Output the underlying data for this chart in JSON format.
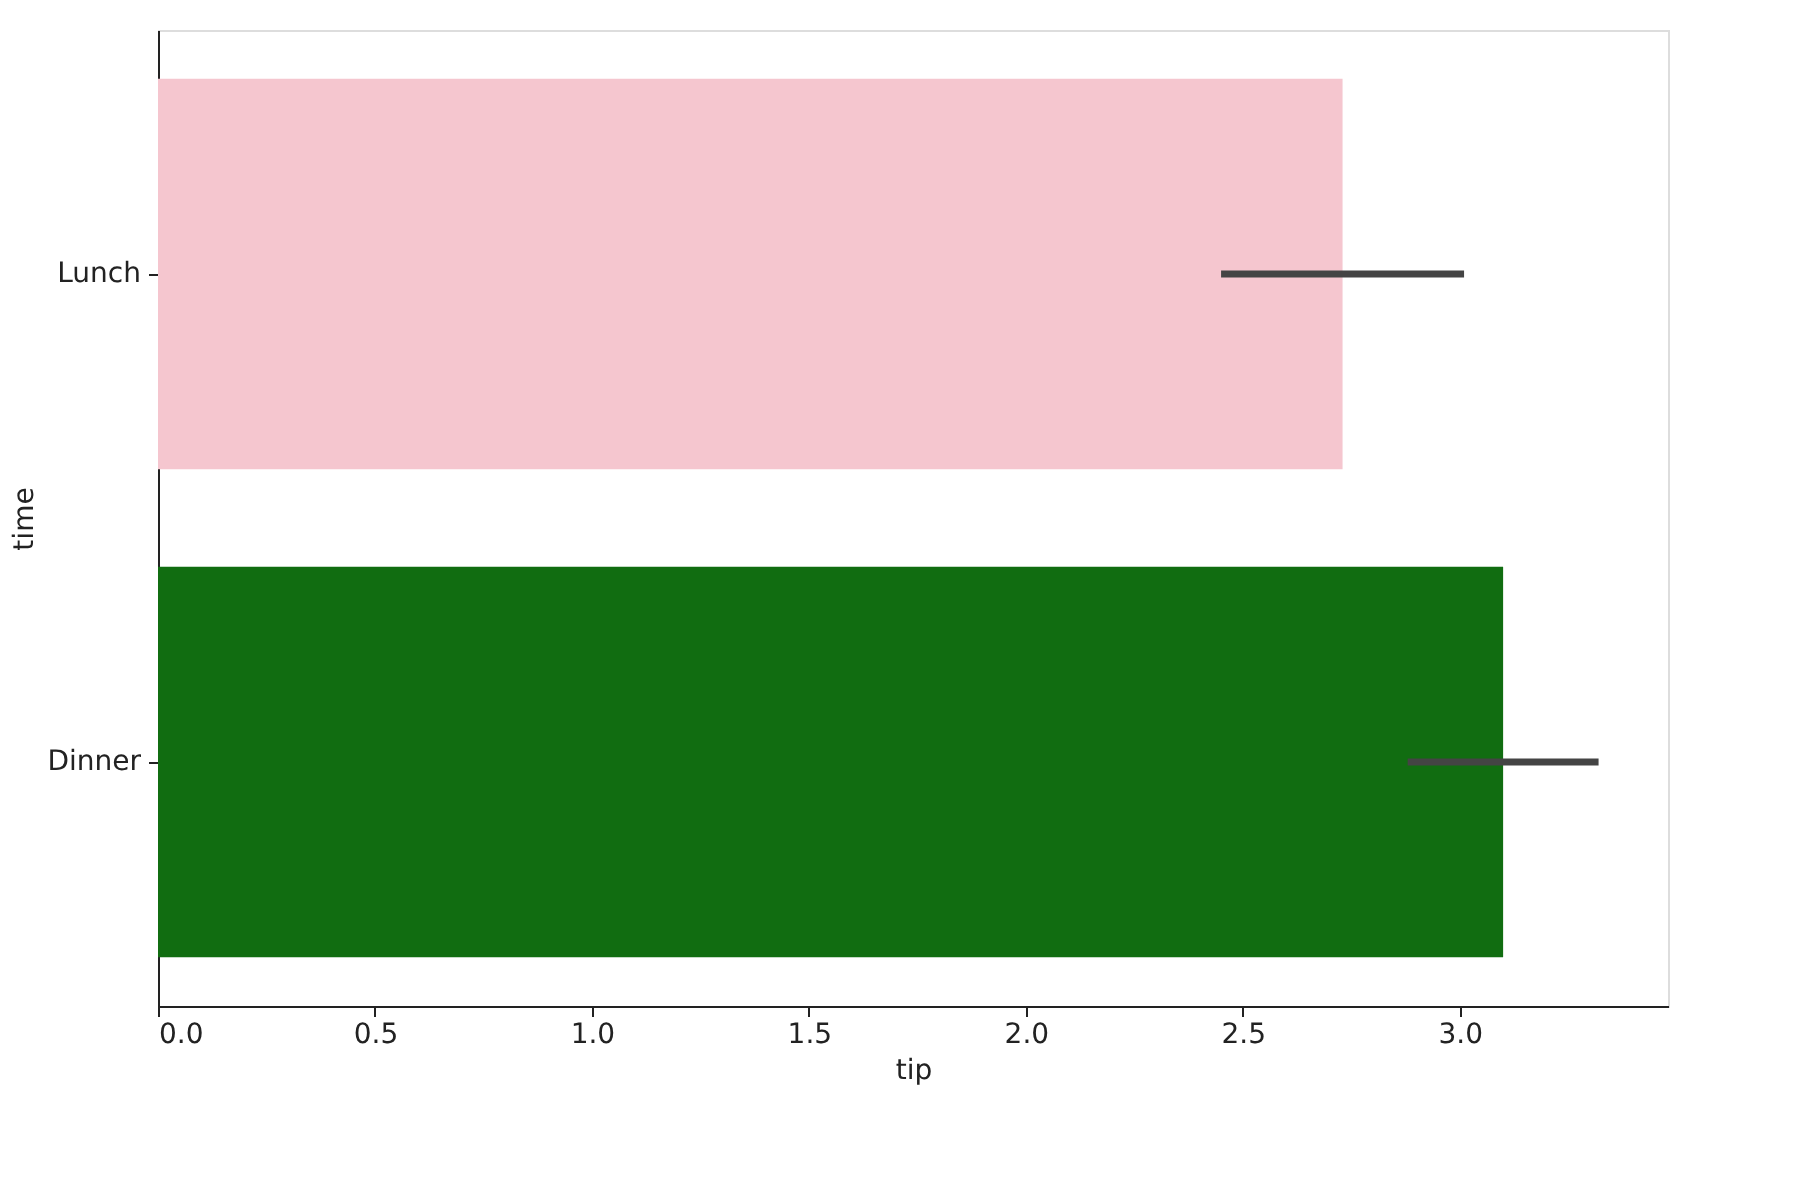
{
  "chart_data": {
    "type": "bar",
    "orientation": "horizontal",
    "xlabel": "tip",
    "ylabel": "time",
    "categories": [
      "Lunch",
      "Dinner"
    ],
    "values": [
      2.73,
      3.1
    ],
    "colors": [
      "#f5c6cf",
      "#116d11"
    ],
    "errors": [
      [
        2.45,
        3.01
      ],
      [
        2.88,
        3.32
      ]
    ],
    "xlim": [
      0,
      3.48
    ],
    "xticks": [
      {
        "value": 0,
        "label": "0.0"
      },
      {
        "value": 0.5,
        "label": "0.5"
      },
      {
        "value": 1,
        "label": "1.0"
      },
      {
        "value": 1.5,
        "label": "1.5"
      },
      {
        "value": 2,
        "label": "2.0"
      },
      {
        "value": 2.5,
        "label": "2.5"
      },
      {
        "value": 3,
        "label": "3.0"
      }
    ]
  }
}
